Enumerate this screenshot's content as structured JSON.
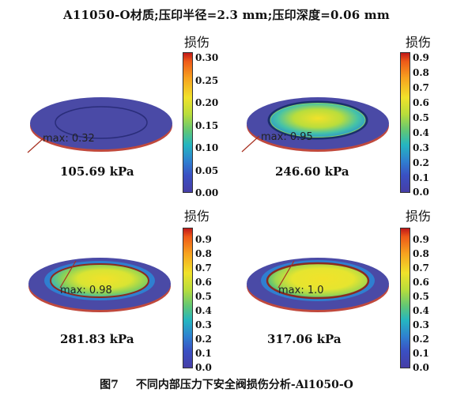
{
  "header": "A11050-O材质;压印半径=2.3 mm;压印深度=0.06 mm",
  "caption": {
    "number": "图7",
    "text": "不同内部压力下安全阀损伤分析-Al1050-O"
  },
  "colorbar_title": "损伤",
  "panels": [
    {
      "pressure": "105.69 kPa",
      "max_label": "max: 0.32",
      "ticks": [
        "0.30",
        "0.25",
        "0.20",
        "0.15",
        "0.10",
        "0.05",
        "0.00"
      ]
    },
    {
      "pressure": "246.60 kPa",
      "max_label": "max: 0.95",
      "ticks": [
        "0.9",
        "0.8",
        "0.7",
        "0.6",
        "0.5",
        "0.4",
        "0.3",
        "0.2",
        "0.1",
        "0.0"
      ]
    },
    {
      "pressure": "281.83 kPa",
      "max_label": "max: 0.98",
      "ticks": [
        "0.9",
        "0.8",
        "0.7",
        "0.6",
        "0.5",
        "0.4",
        "0.3",
        "0.2",
        "0.1",
        "0.0"
      ]
    },
    {
      "pressure": "317.06 kPa",
      "max_label": "max: 1.0",
      "ticks": [
        "0.9",
        "0.8",
        "0.7",
        "0.6",
        "0.5",
        "0.4",
        "0.3",
        "0.2",
        "0.1",
        "0.0"
      ]
    }
  ],
  "colors": {
    "base": "#4a4aa6",
    "edge": "#c0493d",
    "ring_dark": "#1a2f6b",
    "hot": "#f1e22a"
  }
}
